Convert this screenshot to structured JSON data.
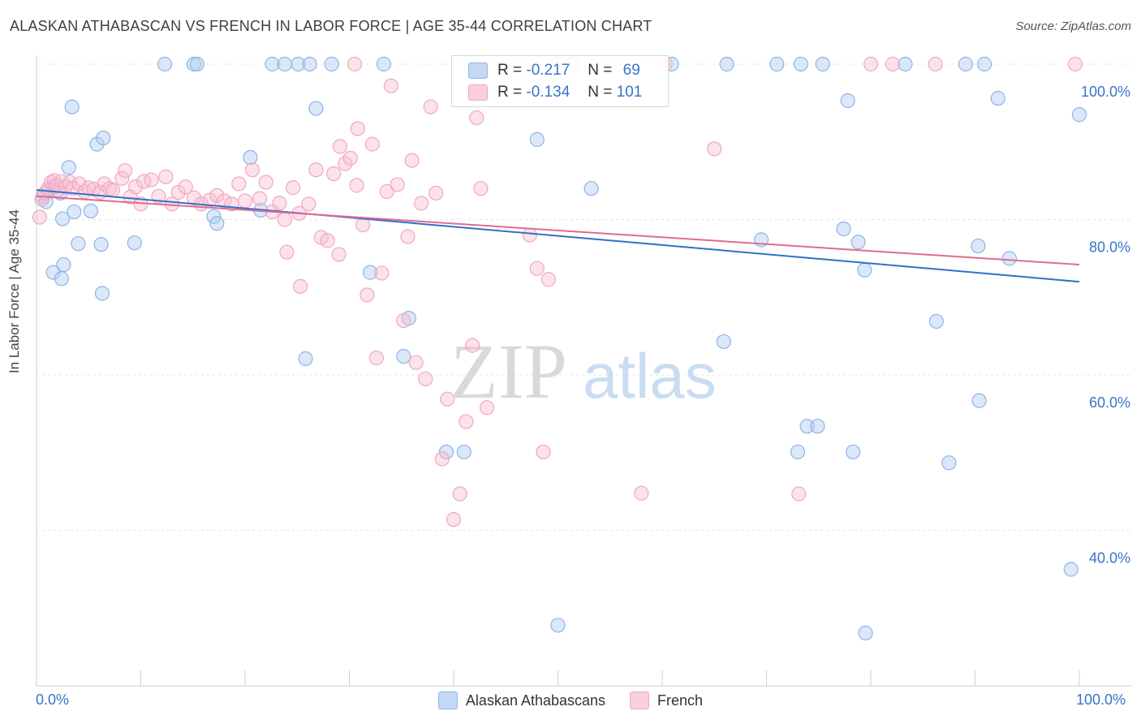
{
  "title": "ALASKAN ATHABASCAN VS FRENCH IN LABOR FORCE | AGE 35-44 CORRELATION CHART",
  "source": "Source: ZipAtlas.com",
  "watermark": {
    "zip": "ZIP",
    "atlas": "atlas"
  },
  "legend": {
    "r_label": "R =",
    "n_label": "N =",
    "rows": [
      {
        "r": "-0.217",
        "n": "69"
      },
      {
        "r": "-0.134",
        "n": "101"
      }
    ]
  },
  "chart_data": {
    "type": "scatter",
    "title": "ALASKAN ATHABASCAN VS FRENCH IN LABOR FORCE | AGE 35-44 CORRELATION CHART",
    "xlabel": "",
    "ylabel": "In Labor Force | Age 35-44",
    "xlim": [
      0,
      100
    ],
    "ylim": [
      20,
      102
    ],
    "x_tick_labels": [
      "0.0%",
      "100.0%"
    ],
    "y_ticks": [
      40,
      60,
      80,
      100
    ],
    "y_tick_labels": [
      "40.0%",
      "60.0%",
      "80.0%",
      "100.0%"
    ],
    "grid": true,
    "legend_position": "top-center",
    "series": [
      {
        "name": "Alaskan Athabascans",
        "color": "#8fb3e8",
        "line_color": "#3070c8",
        "trend": {
          "x": [
            0,
            100
          ],
          "y": [
            83.8,
            72.0
          ]
        },
        "points": [
          [
            0.6,
            82.9
          ],
          [
            0.9,
            82.3
          ],
          [
            1.1,
            83.7
          ],
          [
            1.6,
            84.2
          ],
          [
            2.3,
            83.4
          ],
          [
            2.5,
            80.1
          ],
          [
            1.6,
            73.2
          ],
          [
            2.4,
            72.4
          ],
          [
            2.6,
            74.2
          ],
          [
            3.1,
            86.7
          ],
          [
            3.4,
            94.5
          ],
          [
            3.6,
            81.0
          ],
          [
            4.0,
            76.9
          ],
          [
            5.2,
            81.1
          ],
          [
            5.8,
            89.7
          ],
          [
            6.2,
            76.8
          ],
          [
            6.3,
            70.5
          ],
          [
            6.4,
            90.5
          ],
          [
            9.4,
            77.0
          ],
          [
            12.3,
            100.0
          ],
          [
            15.1,
            100.0
          ],
          [
            15.4,
            100.0
          ],
          [
            17.0,
            80.4
          ],
          [
            17.3,
            79.5
          ],
          [
            20.5,
            88.0
          ],
          [
            21.5,
            81.2
          ],
          [
            22.6,
            100.0
          ],
          [
            23.8,
            100.0
          ],
          [
            25.1,
            100.0
          ],
          [
            25.8,
            62.1
          ],
          [
            26.2,
            100.0
          ],
          [
            26.8,
            94.3
          ],
          [
            28.3,
            100.0
          ],
          [
            32.0,
            73.2
          ],
          [
            35.2,
            62.4
          ],
          [
            35.7,
            67.3
          ],
          [
            39.3,
            50.1
          ],
          [
            41.0,
            50.1
          ],
          [
            48.0,
            90.3
          ],
          [
            50.0,
            27.8
          ],
          [
            53.2,
            84.0
          ],
          [
            60.9,
            100.0
          ],
          [
            65.9,
            64.3
          ],
          [
            66.2,
            100.0
          ],
          [
            69.5,
            77.4
          ],
          [
            71.0,
            100.0
          ],
          [
            73.0,
            50.1
          ],
          [
            73.3,
            100.0
          ],
          [
            73.9,
            53.4
          ],
          [
            74.9,
            53.4
          ],
          [
            75.4,
            100.0
          ],
          [
            77.4,
            78.8
          ],
          [
            77.8,
            95.3
          ],
          [
            78.3,
            50.1
          ],
          [
            78.8,
            77.1
          ],
          [
            79.4,
            73.5
          ],
          [
            83.3,
            100.0
          ],
          [
            86.3,
            66.9
          ],
          [
            87.5,
            48.7
          ],
          [
            89.1,
            100.0
          ],
          [
            90.3,
            76.6
          ],
          [
            90.4,
            56.7
          ],
          [
            90.9,
            100.0
          ],
          [
            92.2,
            95.6
          ],
          [
            93.3,
            75.0
          ],
          [
            99.2,
            35.0
          ],
          [
            100.0,
            93.5
          ],
          [
            79.5,
            26.8
          ],
          [
            33.3,
            100.0
          ]
        ]
      },
      {
        "name": "French",
        "color": "#f2a7c0",
        "line_color": "#e06a95",
        "trend": {
          "x": [
            0,
            100
          ],
          "y": [
            83.0,
            74.2
          ]
        },
        "points": [
          [
            0.3,
            80.3
          ],
          [
            0.5,
            82.6
          ],
          [
            0.8,
            83.4
          ],
          [
            1.1,
            84.0
          ],
          [
            1.4,
            84.8
          ],
          [
            1.7,
            85.0
          ],
          [
            1.9,
            84.4
          ],
          [
            2.1,
            83.8
          ],
          [
            2.4,
            84.9
          ],
          [
            2.8,
            84.2
          ],
          [
            3.2,
            84.8
          ],
          [
            3.5,
            84.0
          ],
          [
            4.1,
            84.6
          ],
          [
            4.6,
            83.6
          ],
          [
            5.0,
            84.1
          ],
          [
            5.5,
            83.9
          ],
          [
            6.1,
            83.5
          ],
          [
            6.5,
            84.6
          ],
          [
            7.0,
            84.0
          ],
          [
            7.3,
            83.8
          ],
          [
            8.2,
            85.3
          ],
          [
            8.5,
            86.3
          ],
          [
            9.0,
            82.9
          ],
          [
            9.5,
            84.2
          ],
          [
            10.0,
            82.0
          ],
          [
            10.3,
            84.9
          ],
          [
            11.0,
            85.1
          ],
          [
            11.7,
            83.0
          ],
          [
            12.4,
            85.5
          ],
          [
            13.0,
            82.0
          ],
          [
            13.6,
            83.5
          ],
          [
            14.3,
            84.2
          ],
          [
            15.1,
            82.8
          ],
          [
            15.8,
            82.0
          ],
          [
            16.6,
            82.5
          ],
          [
            17.3,
            83.1
          ],
          [
            18.0,
            82.4
          ],
          [
            18.7,
            82.0
          ],
          [
            19.4,
            84.6
          ],
          [
            20.0,
            82.4
          ],
          [
            20.7,
            86.4
          ],
          [
            21.4,
            82.7
          ],
          [
            22.0,
            84.8
          ],
          [
            22.6,
            81.0
          ],
          [
            23.3,
            82.1
          ],
          [
            23.8,
            80.0
          ],
          [
            24.6,
            84.1
          ],
          [
            25.2,
            80.8
          ],
          [
            26.1,
            82.0
          ],
          [
            26.8,
            86.4
          ],
          [
            27.3,
            77.7
          ],
          [
            27.9,
            77.3
          ],
          [
            28.5,
            85.9
          ],
          [
            29.1,
            89.4
          ],
          [
            29.6,
            87.2
          ],
          [
            30.1,
            87.9
          ],
          [
            30.7,
            84.4
          ],
          [
            31.3,
            79.3
          ],
          [
            31.7,
            70.3
          ],
          [
            32.2,
            89.7
          ],
          [
            32.6,
            62.2
          ],
          [
            33.1,
            73.1
          ],
          [
            33.6,
            83.6
          ],
          [
            34.0,
            97.2
          ],
          [
            34.6,
            84.5
          ],
          [
            35.2,
            67.0
          ],
          [
            35.6,
            77.8
          ],
          [
            36.0,
            87.6
          ],
          [
            36.4,
            61.6
          ],
          [
            36.9,
            82.1
          ],
          [
            37.3,
            59.5
          ],
          [
            37.8,
            94.5
          ],
          [
            38.3,
            83.4
          ],
          [
            38.9,
            49.2
          ],
          [
            39.4,
            56.9
          ],
          [
            40.0,
            41.4
          ],
          [
            40.6,
            44.7
          ],
          [
            41.2,
            54.0
          ],
          [
            41.8,
            63.8
          ],
          [
            42.2,
            93.1
          ],
          [
            42.6,
            84.0
          ],
          [
            43.2,
            55.8
          ],
          [
            47.3,
            78.0
          ],
          [
            48.0,
            73.7
          ],
          [
            48.6,
            50.1
          ],
          [
            49.1,
            72.3
          ],
          [
            50.0,
            100.0
          ],
          [
            51.4,
            100.0
          ],
          [
            58.0,
            44.8
          ],
          [
            60.3,
            100.0
          ],
          [
            65.0,
            89.1
          ],
          [
            73.1,
            44.7
          ],
          [
            80.0,
            100.0
          ],
          [
            82.1,
            100.0
          ],
          [
            99.6,
            100.0
          ],
          [
            24.0,
            75.8
          ],
          [
            25.3,
            71.4
          ],
          [
            30.8,
            91.7
          ],
          [
            29.0,
            75.5
          ],
          [
            30.5,
            100.0
          ],
          [
            86.2,
            100.0
          ]
        ]
      }
    ]
  }
}
